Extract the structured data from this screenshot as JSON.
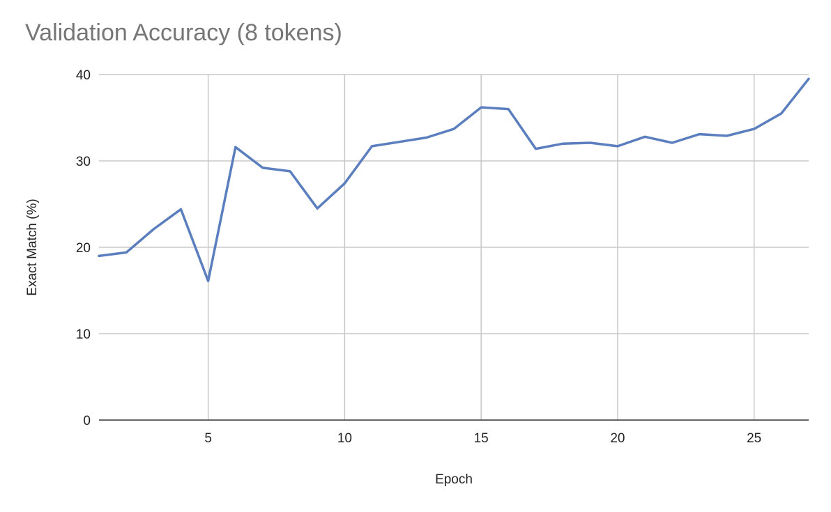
{
  "chart_data": {
    "type": "line",
    "title": "Validation Accuracy (8 tokens)",
    "xlabel": "Epoch",
    "ylabel": "Exact Match (%)",
    "xlim": [
      1,
      27
    ],
    "ylim": [
      0,
      40
    ],
    "x_ticks": [
      5,
      10,
      15,
      20,
      25
    ],
    "y_ticks": [
      0,
      10,
      20,
      30,
      40
    ],
    "grid": true,
    "line_color": "#5b7fbe",
    "series": [
      {
        "x": [
          1,
          2,
          3,
          4,
          5,
          6,
          7,
          8,
          9,
          10,
          11,
          12,
          13,
          14,
          15,
          16,
          17,
          18,
          19,
          20,
          21,
          22,
          23,
          24,
          25,
          26,
          27
        ],
        "values": [
          19.0,
          19.4,
          22.1,
          24.4,
          16.1,
          31.6,
          29.2,
          28.8,
          24.5,
          27.4,
          31.7,
          32.2,
          32.7,
          33.7,
          36.2,
          36.0,
          31.4,
          32.0,
          32.1,
          31.7,
          32.8,
          32.1,
          33.1,
          32.9,
          33.7,
          35.5,
          39.5
        ]
      }
    ]
  }
}
